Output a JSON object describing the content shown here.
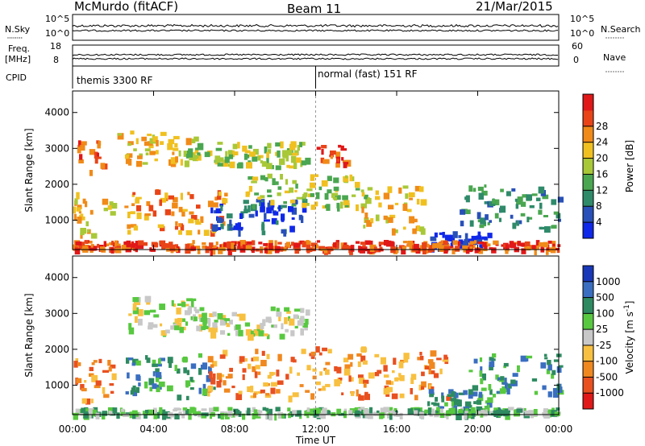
{
  "header": {
    "station": "McMurdo (fitACF)",
    "beam": "Beam 11",
    "date": "21/Mar/2015"
  },
  "strips": {
    "nsky_label": "N.Sky",
    "nsky_ticks": [
      "10^5",
      "10^0"
    ],
    "nsearch_label": "N.Search",
    "nsearch_ticks": [
      "10^5",
      "10^0"
    ],
    "freq_label_1": "Freq.",
    "freq_label_2": "[MHz]",
    "freq_ticks": [
      "18",
      "8"
    ],
    "nave_label": "Nave",
    "nave_ticks": [
      "60",
      "0"
    ],
    "cpid_label": "CPID",
    "cpid_1": "themis 3300 RF",
    "cpid_2": "normal (fast) 151 RF"
  },
  "chart_data": [
    {
      "type": "heatmap",
      "name": "power",
      "ylabel": "Slant Range [km]",
      "xlabel": "",
      "x_ticks": [
        "00:00",
        "04:00",
        "08:00",
        "12:00",
        "16:00",
        "20:00",
        "00:00"
      ],
      "xlim_hours": [
        0,
        24
      ],
      "y_ticks": [
        1000,
        2000,
        3000,
        4000
      ],
      "ylim": [
        180,
        4600
      ],
      "colorbar": {
        "label": "Power [dB]",
        "ticks": [
          "4",
          "8",
          "12",
          "16",
          "20",
          "24",
          "28"
        ],
        "colors": [
          "#1028e8",
          "#2850b8",
          "#2f8a6a",
          "#4aa650",
          "#a8c838",
          "#f0c020",
          "#f08a18",
          "#e84418",
          "#e01818"
        ]
      }
    },
    {
      "type": "heatmap",
      "name": "velocity",
      "ylabel": "Slant Range [km]",
      "xlabel": "Time UT",
      "x_ticks": [
        "00:00",
        "04:00",
        "08:00",
        "12:00",
        "16:00",
        "20:00",
        "00:00"
      ],
      "xlim_hours": [
        0,
        24
      ],
      "y_ticks": [
        1000,
        2000,
        3000,
        4000
      ],
      "ylim": [
        180,
        4600
      ],
      "colorbar": {
        "label": "Velocity [m s",
        "label_sup": "-1",
        "label_end": "]",
        "ticks": [
          "1000",
          "500",
          "100",
          "25",
          "-25",
          "-100",
          "-500",
          "-1000"
        ],
        "colors": [
          "#1838b8",
          "#3a6ec0",
          "#2e8a60",
          "#58c840",
          "#c8c8c8",
          "#f8c040",
          "#f08820",
          "#e85020",
          "#e01818"
        ]
      }
    }
  ]
}
